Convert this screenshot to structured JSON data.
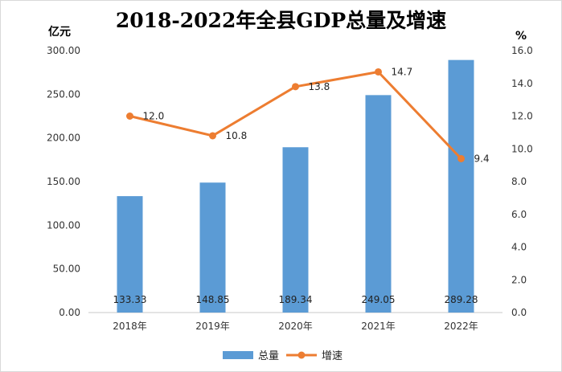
{
  "chart_data": {
    "type": "bar+line",
    "title": "2018-2022年全县GDP总量及增速",
    "categories": [
      "2018年",
      "2019年",
      "2020年",
      "2021年",
      "2022年"
    ],
    "series": [
      {
        "name": "总量",
        "type": "bar",
        "axis": "left",
        "color": "#5b9bd5",
        "values": [
          133.33,
          148.85,
          189.34,
          249.05,
          289.28
        ],
        "labels": [
          "133.33",
          "148.85",
          "189.34",
          "249.05",
          "289.28"
        ]
      },
      {
        "name": "增速",
        "type": "line",
        "axis": "right",
        "color": "#ed7d31",
        "values": [
          12.0,
          10.8,
          13.8,
          14.7,
          9.4
        ],
        "labels": [
          "12.0",
          "10.8",
          "13.8",
          "14.7",
          "9.4"
        ]
      }
    ],
    "y_left": {
      "unit": "亿元",
      "min": 0,
      "max": 300,
      "step": 50,
      "ticks": [
        "0.00",
        "50.00",
        "100.00",
        "150.00",
        "200.00",
        "250.00",
        "300.00"
      ]
    },
    "y_right": {
      "unit": "%",
      "min": 0,
      "max": 16,
      "step": 2,
      "ticks": [
        "0.0",
        "2.0",
        "4.0",
        "6.0",
        "8.0",
        "10.0",
        "12.0",
        "14.0",
        "16.0"
      ]
    },
    "grid": false,
    "legend": "bottom-center"
  }
}
